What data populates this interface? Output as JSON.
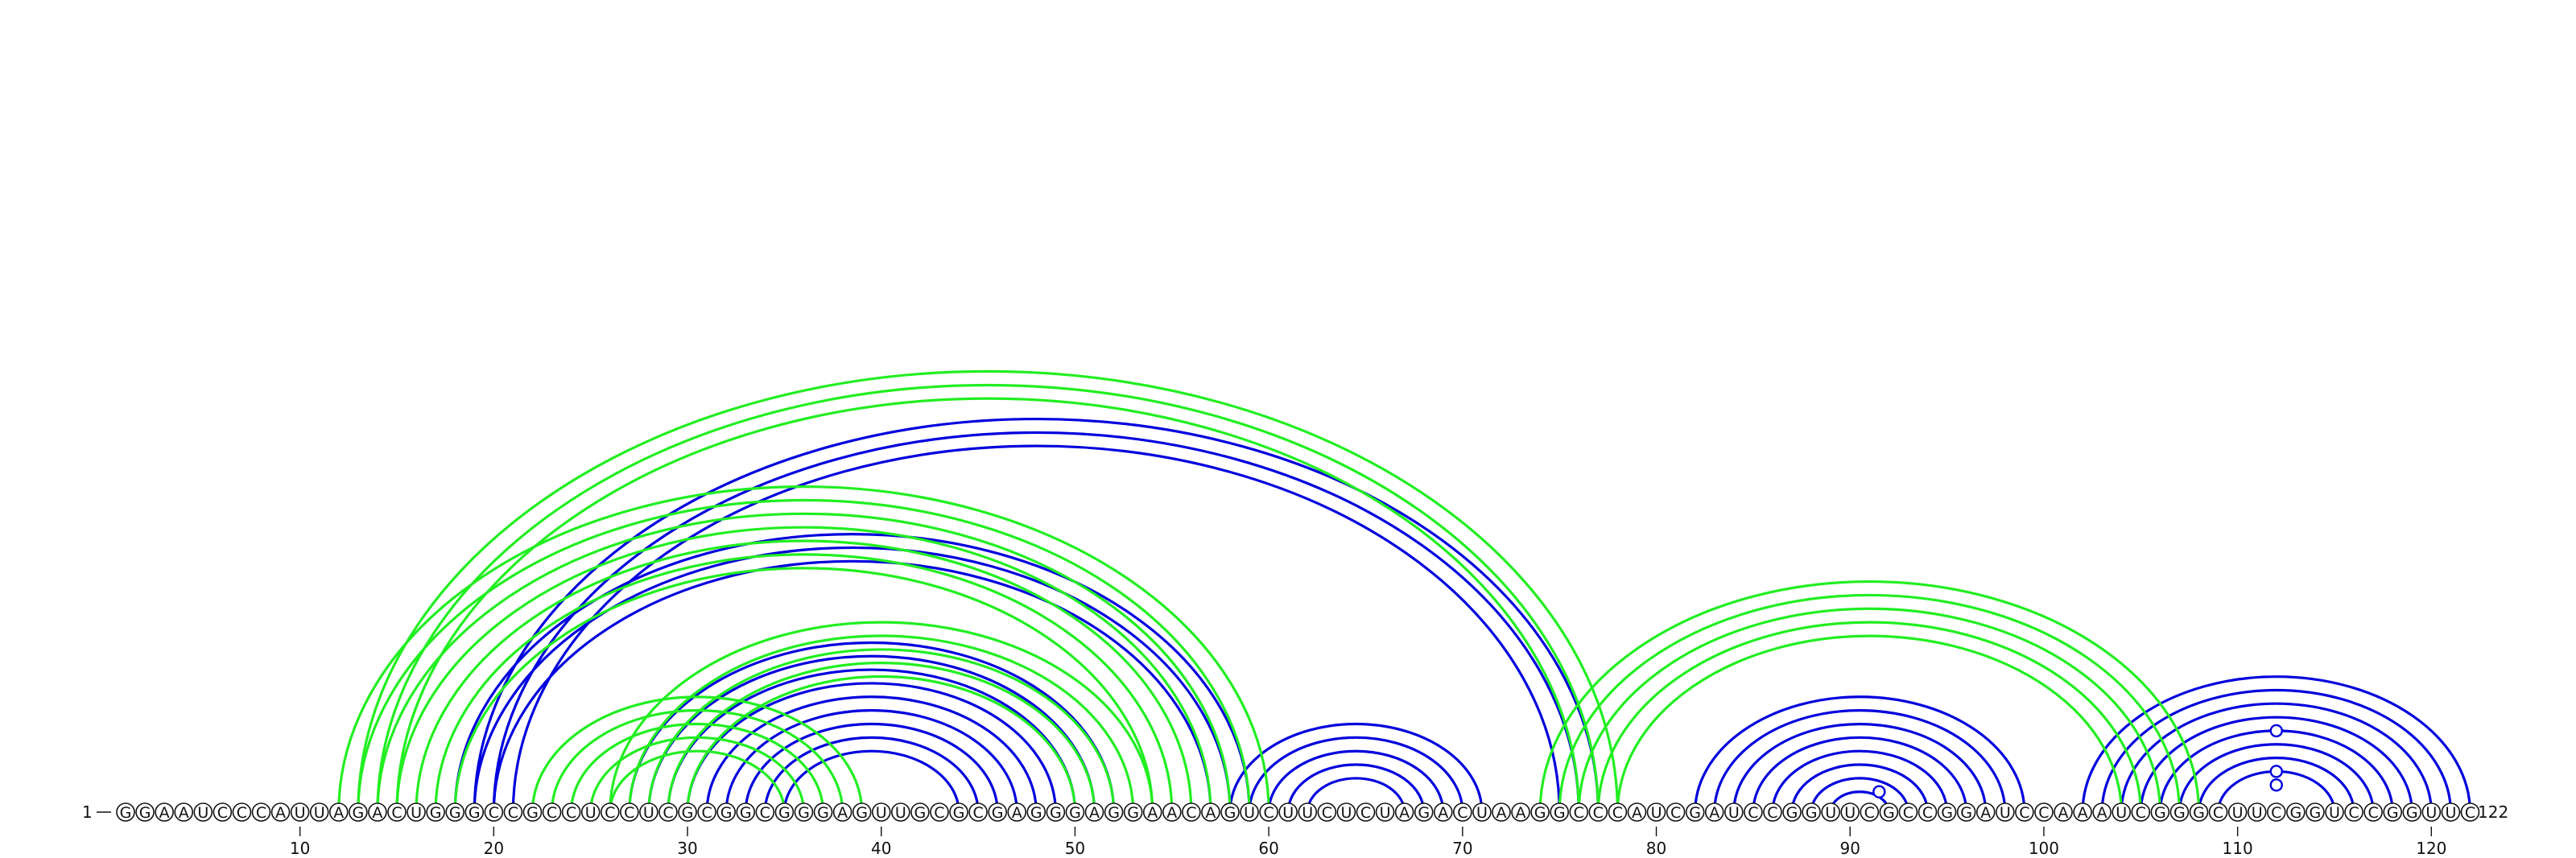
{
  "diagram": {
    "type": "rna-arc-diagram",
    "sequence": "GGAAUCCCAUUAGACUGGGCCGCCUCCUCGCGGCGGGAGUUGCGCGAGGGAGGAACAGUCUUCUCUAGACUAAGGCCCAUCGAUCCGGUUCGCCGGAUCCAAAUCGGGCUUCGGUCCGGUUC",
    "start_label": "1",
    "end_label": "122",
    "ticks": [
      10,
      20,
      30,
      40,
      50,
      60,
      70,
      80,
      90,
      100,
      110,
      120
    ],
    "colors": {
      "blue": "#0000dd",
      "green": "#22ee22"
    },
    "arc_groups": [
      {
        "color": "blue",
        "pairs": [
          [
            19,
            77
          ],
          [
            20,
            76
          ],
          [
            21,
            75
          ]
        ]
      },
      {
        "color": "blue",
        "pairs": [
          [
            18,
            59
          ],
          [
            19,
            58
          ],
          [
            20,
            57
          ]
        ]
      },
      {
        "color": "blue",
        "pairs": [
          [
            27,
            52
          ],
          [
            28,
            51
          ],
          [
            29,
            50
          ],
          [
            30,
            49
          ],
          [
            31,
            48
          ],
          [
            32,
            47
          ],
          [
            33,
            46
          ],
          [
            34,
            45
          ],
          [
            35,
            44
          ]
        ]
      },
      {
        "color": "blue",
        "pairs": [
          [
            58,
            71
          ],
          [
            59,
            70
          ],
          [
            60,
            69
          ],
          [
            61,
            68
          ],
          [
            62,
            67
          ]
        ]
      },
      {
        "color": "blue",
        "pairs": [
          [
            82,
            99
          ],
          [
            83,
            98
          ],
          [
            84,
            97
          ],
          [
            85,
            96
          ],
          [
            86,
            95
          ],
          [
            87,
            94
          ],
          [
            88,
            93
          ],
          [
            89,
            92
          ]
        ]
      },
      {
        "color": "blue",
        "pairs": [
          [
            102,
            122
          ],
          [
            103,
            121
          ],
          [
            104,
            120
          ],
          [
            105,
            119
          ],
          [
            106,
            118
          ],
          [
            107,
            117
          ],
          [
            108,
            116
          ],
          [
            109,
            115
          ]
        ]
      },
      {
        "color": "green",
        "pairs": [
          [
            13,
            78
          ],
          [
            14,
            77
          ],
          [
            15,
            76
          ]
        ]
      },
      {
        "color": "green",
        "pairs": [
          [
            12,
            60
          ],
          [
            13,
            59
          ],
          [
            14,
            58
          ],
          [
            15,
            57
          ],
          [
            16,
            56
          ],
          [
            17,
            55
          ],
          [
            18,
            54
          ]
        ]
      },
      {
        "color": "green",
        "pairs": [
          [
            22,
            39
          ],
          [
            23,
            38
          ],
          [
            24,
            37
          ],
          [
            25,
            36
          ],
          [
            26,
            35
          ]
        ]
      },
      {
        "color": "green",
        "pairs": [
          [
            26,
            54
          ],
          [
            27,
            53
          ],
          [
            28,
            52
          ],
          [
            29,
            51
          ],
          [
            30,
            50
          ]
        ]
      },
      {
        "color": "green",
        "pairs": [
          [
            74,
            108
          ],
          [
            75,
            107
          ],
          [
            76,
            106
          ],
          [
            77,
            105
          ],
          [
            78,
            104
          ]
        ]
      }
    ],
    "rings": [
      {
        "color": "blue",
        "at": 91.5,
        "pair": [
          90,
          93
        ]
      },
      {
        "color": "blue",
        "at": 112,
        "pair": [
          110,
          114
        ]
      },
      {
        "color": "blue",
        "at": 112,
        "pair": [
          109,
          115
        ]
      },
      {
        "color": "blue",
        "at": 112,
        "pair": [
          106,
          118
        ]
      }
    ]
  }
}
